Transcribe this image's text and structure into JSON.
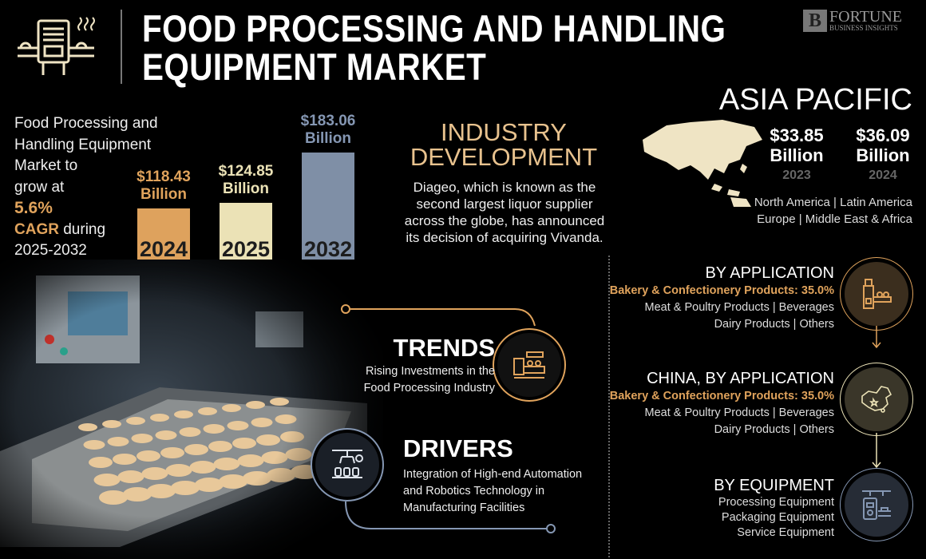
{
  "header": {
    "title_line1": "FOOD PROCESSING AND HANDLING",
    "title_line2": "EQUIPMENT MARKET",
    "logo_text": "FORTUNE",
    "logo_subtext": "BUSINESS INSIGHTS"
  },
  "intro": {
    "line1": "Food Processing and",
    "line2": "Handling Equipment",
    "line3": "Market  to",
    "line4": "grow at",
    "cagr": "5.6%",
    "cagr_label": "CAGR",
    "during": " during",
    "period": "2025-2032"
  },
  "chart_data": {
    "type": "bar",
    "categories": [
      "2024",
      "2025",
      "2032"
    ],
    "values": [
      118.43,
      124.85,
      183.06
    ],
    "value_labels": [
      "$118.43",
      "$124.85",
      "$183.06"
    ],
    "unit_label": "Billion",
    "colors": [
      "#dea25d",
      "#ebe2b6",
      "#7f8fa6"
    ],
    "label_colors": [
      "#e0a35c",
      "#ebe2b6",
      "#8597b3"
    ]
  },
  "industry": {
    "title_line1": "INDUSTRY",
    "title_line2": "DEVELOPMENT",
    "text": "Diageo, which is known as the second largest liquor supplier across the globe, has announced its decision of acquiring Vivanda."
  },
  "asia_pacific": {
    "title": "ASIA PACIFIC",
    "values": [
      {
        "amount": "$33.85",
        "unit": "Billion",
        "year": "2023"
      },
      {
        "amount": "$36.09",
        "unit": "Billion",
        "year": "2024"
      }
    ],
    "regions_line1": "North America  |  Latin America",
    "regions_line2": "Europe  |  Middle East & Africa"
  },
  "segments": [
    {
      "title": "BY APPLICATION",
      "highlight": "Bakery & Confectionery Products: 35.0%",
      "line1": "Meat & Poultry Products  |  Beverages",
      "line2": "Dairy Products  |  Others",
      "icon": "bakery-machine-icon",
      "color": "#e0a35c"
    },
    {
      "title": "CHINA, BY APPLICATION",
      "highlight": "Bakery & Confectionery Products: 35.0%",
      "line1": "Meat & Poultry Products  |  Beverages",
      "line2": "Dairy Products  |  Others",
      "icon": "china-map-icon",
      "color": "#ebe2b6"
    },
    {
      "title": "BY EQUIPMENT",
      "line1": "Processing Equipment",
      "line2": "Packaging Equipment",
      "line3": "Service Equipment",
      "icon": "packaging-machine-icon",
      "color": "#8597b3"
    }
  ],
  "trends": {
    "title": "TRENDS",
    "line1": "Rising Investments in the",
    "line2": "Food Processing Industry",
    "icon": "production-line-icon"
  },
  "drivers": {
    "title": "DRIVERS",
    "line1": "Integration of High-end Automation",
    "line2": "and Robotics Technology in",
    "line3": "Manufacturing Facilities",
    "icon": "robot-arm-icon"
  }
}
